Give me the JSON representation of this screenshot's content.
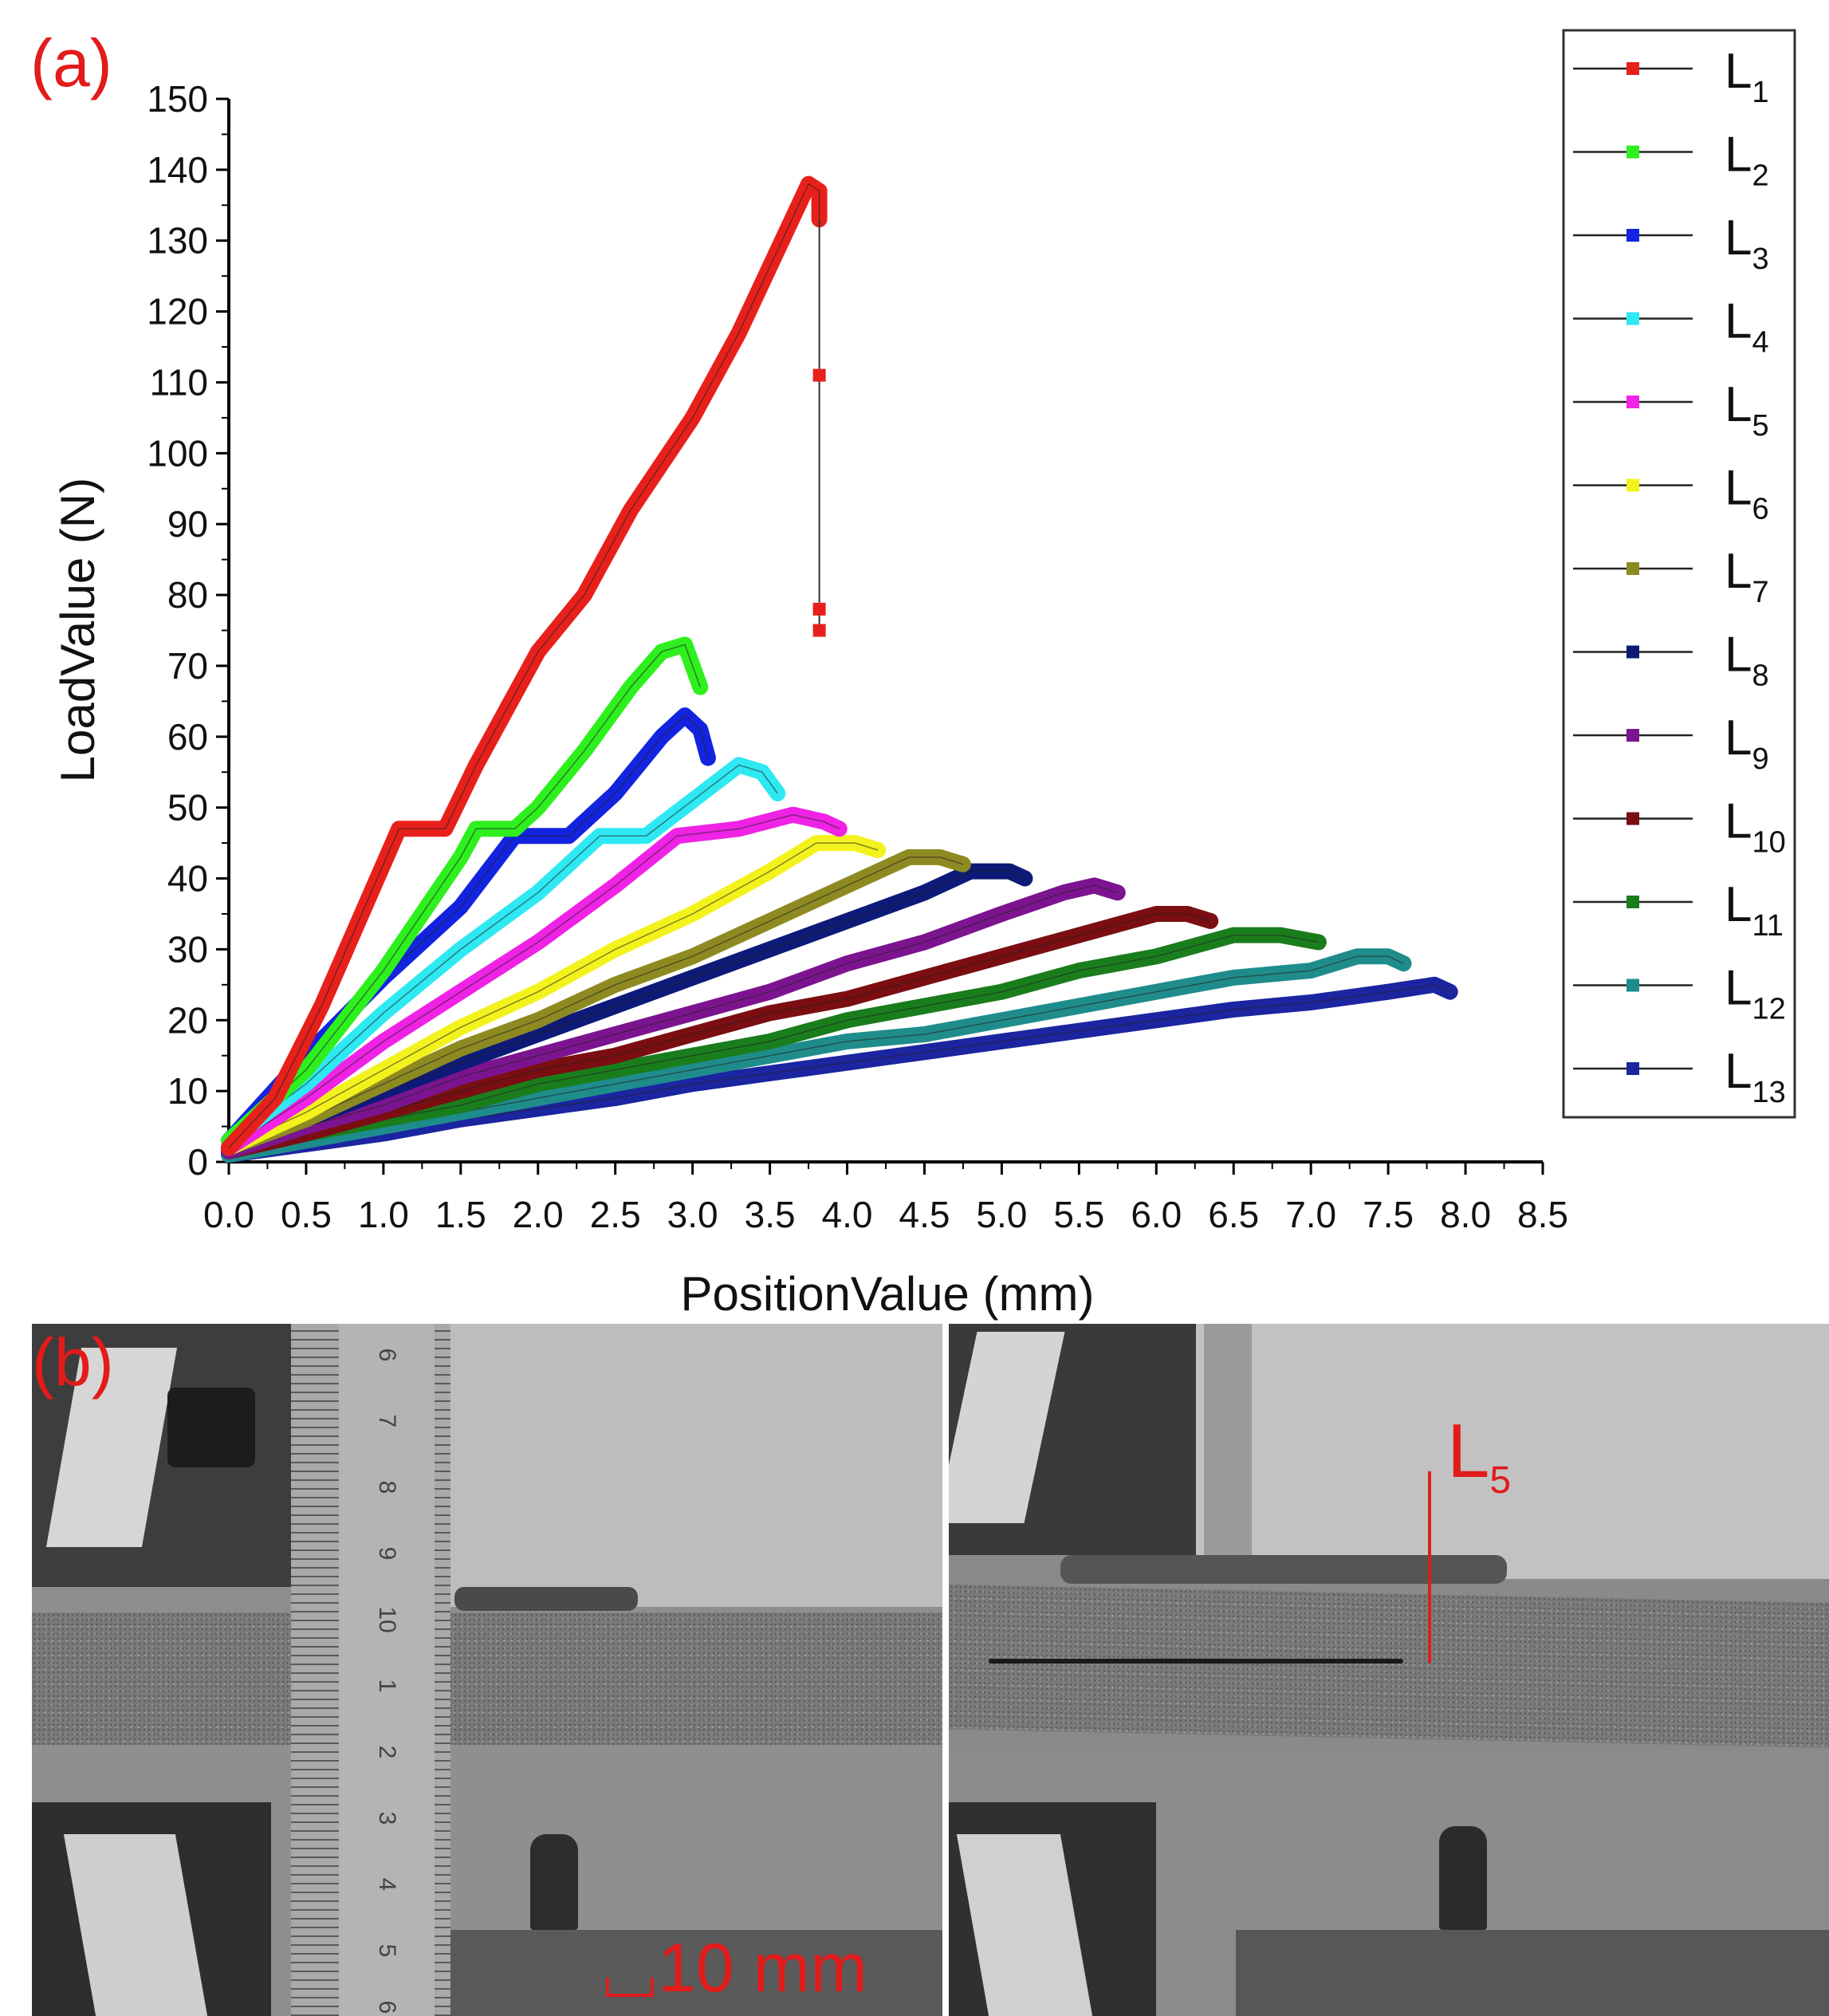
{
  "panel_a_label": "(a)",
  "panel_b_label": "(b)",
  "photo": {
    "scale_bar_label": "10 mm",
    "annotation_line": "L",
    "annotation_sub": "5",
    "ruler_numbers": [
      "6",
      "7",
      "8",
      "9",
      "10",
      "1",
      "2",
      "3",
      "4",
      "5",
      "6"
    ]
  },
  "chart_data": {
    "type": "line",
    "xlabel": "PositionValue (mm)",
    "ylabel": "LoadValue (N)",
    "xlim": [
      0,
      8.5
    ],
    "ylim": [
      0,
      150
    ],
    "xticks": [
      "0.0",
      "0.5",
      "1.0",
      "1.5",
      "2.0",
      "2.5",
      "3.0",
      "3.5",
      "4.0",
      "4.5",
      "5.0",
      "5.5",
      "6.0",
      "6.5",
      "7.0",
      "7.5",
      "8.0",
      "8.5"
    ],
    "yticks": [
      "0",
      "10",
      "20",
      "30",
      "40",
      "50",
      "60",
      "70",
      "80",
      "90",
      "100",
      "110",
      "120",
      "130",
      "140",
      "150"
    ],
    "grid": false,
    "legend_position": "right",
    "series": [
      {
        "name": "L",
        "sub": "1",
        "color": "#e8201b",
        "points": [
          [
            0,
            2
          ],
          [
            0.3,
            9
          ],
          [
            0.6,
            22
          ],
          [
            0.8,
            32
          ],
          [
            1.0,
            42
          ],
          [
            1.1,
            47
          ],
          [
            1.4,
            47
          ],
          [
            1.6,
            56
          ],
          [
            2.0,
            72
          ],
          [
            2.3,
            80
          ],
          [
            2.6,
            92
          ],
          [
            3.0,
            105
          ],
          [
            3.3,
            117
          ],
          [
            3.6,
            131
          ],
          [
            3.75,
            138
          ],
          [
            3.82,
            137
          ],
          [
            3.82,
            133
          ]
        ],
        "drop_points": [
          [
            3.82,
            111
          ],
          [
            3.82,
            78
          ],
          [
            3.82,
            75
          ]
        ]
      },
      {
        "name": "L",
        "sub": "2",
        "color": "#2ef01e",
        "points": [
          [
            0,
            3
          ],
          [
            0.5,
            13
          ],
          [
            1.0,
            27
          ],
          [
            1.5,
            43
          ],
          [
            1.6,
            47
          ],
          [
            1.85,
            47
          ],
          [
            2.0,
            50
          ],
          [
            2.3,
            58
          ],
          [
            2.6,
            67
          ],
          [
            2.8,
            72
          ],
          [
            2.95,
            73
          ],
          [
            3.0,
            70
          ],
          [
            3.05,
            67
          ]
        ]
      },
      {
        "name": "L",
        "sub": "3",
        "color": "#1324e0",
        "points": [
          [
            0,
            3
          ],
          [
            0.5,
            15
          ],
          [
            1.0,
            26
          ],
          [
            1.5,
            36
          ],
          [
            1.85,
            46
          ],
          [
            2.2,
            46
          ],
          [
            2.5,
            52
          ],
          [
            2.8,
            60
          ],
          [
            2.95,
            63
          ],
          [
            3.05,
            61
          ],
          [
            3.1,
            57
          ]
        ]
      },
      {
        "name": "L",
        "sub": "4",
        "color": "#2ee8f2",
        "points": [
          [
            0,
            3
          ],
          [
            0.5,
            11
          ],
          [
            1.0,
            21
          ],
          [
            1.5,
            30
          ],
          [
            2.0,
            38
          ],
          [
            2.4,
            46
          ],
          [
            2.7,
            46
          ],
          [
            3.0,
            51
          ],
          [
            3.3,
            56
          ],
          [
            3.45,
            55
          ],
          [
            3.55,
            52
          ]
        ]
      },
      {
        "name": "L",
        "sub": "5",
        "color": "#ef22e6",
        "points": [
          [
            0,
            2
          ],
          [
            0.5,
            9
          ],
          [
            1.0,
            17
          ],
          [
            1.5,
            24
          ],
          [
            2.0,
            31
          ],
          [
            2.5,
            39
          ],
          [
            2.9,
            46
          ],
          [
            3.3,
            47
          ],
          [
            3.65,
            49
          ],
          [
            3.85,
            48
          ],
          [
            3.95,
            47
          ]
        ]
      },
      {
        "name": "L",
        "sub": "6",
        "color": "#f4f21c",
        "points": [
          [
            0,
            2
          ],
          [
            0.5,
            7
          ],
          [
            1.0,
            13
          ],
          [
            1.5,
            19
          ],
          [
            2.0,
            24
          ],
          [
            2.5,
            30
          ],
          [
            3.0,
            35
          ],
          [
            3.5,
            41
          ],
          [
            3.8,
            45
          ],
          [
            4.05,
            45
          ],
          [
            4.2,
            44
          ]
        ]
      },
      {
        "name": "L",
        "sub": "7",
        "color": "#8e8a22",
        "points": [
          [
            0,
            2
          ],
          [
            0.5,
            6
          ],
          [
            1.0,
            11
          ],
          [
            1.5,
            16
          ],
          [
            2.0,
            20
          ],
          [
            2.5,
            25
          ],
          [
            3.0,
            29
          ],
          [
            3.5,
            34
          ],
          [
            4.0,
            39
          ],
          [
            4.4,
            43
          ],
          [
            4.6,
            43
          ],
          [
            4.75,
            42
          ]
        ]
      },
      {
        "name": "L",
        "sub": "8",
        "color": "#0d1a78",
        "points": [
          [
            0,
            2
          ],
          [
            0.5,
            6
          ],
          [
            1.0,
            10
          ],
          [
            1.5,
            14
          ],
          [
            2.0,
            18
          ],
          [
            2.5,
            22
          ],
          [
            3.0,
            26
          ],
          [
            3.5,
            30
          ],
          [
            4.0,
            34
          ],
          [
            4.5,
            38
          ],
          [
            4.8,
            41
          ],
          [
            5.05,
            41
          ],
          [
            5.15,
            40
          ]
        ]
      },
      {
        "name": "L",
        "sub": "9",
        "color": "#7c1490",
        "points": [
          [
            0,
            1.5
          ],
          [
            0.5,
            5
          ],
          [
            1.0,
            8
          ],
          [
            1.5,
            12
          ],
          [
            2.0,
            15
          ],
          [
            2.5,
            18
          ],
          [
            3.0,
            21
          ],
          [
            3.5,
            24
          ],
          [
            4.0,
            28
          ],
          [
            4.5,
            31
          ],
          [
            5.0,
            35
          ],
          [
            5.4,
            38
          ],
          [
            5.6,
            39
          ],
          [
            5.75,
            38
          ]
        ]
      },
      {
        "name": "L",
        "sub": "10",
        "color": "#7a0e12",
        "points": [
          [
            0,
            1.5
          ],
          [
            0.5,
            4
          ],
          [
            1.0,
            7
          ],
          [
            1.5,
            10
          ],
          [
            2.0,
            13
          ],
          [
            2.5,
            15
          ],
          [
            3.0,
            18
          ],
          [
            3.5,
            21
          ],
          [
            4.0,
            23
          ],
          [
            4.5,
            26
          ],
          [
            5.0,
            29
          ],
          [
            5.5,
            32
          ],
          [
            6.0,
            35
          ],
          [
            6.2,
            35
          ],
          [
            6.35,
            34
          ]
        ]
      },
      {
        "name": "L",
        "sub": "11",
        "color": "#1a7d1c",
        "points": [
          [
            0,
            1.5
          ],
          [
            0.5,
            4
          ],
          [
            1.0,
            6
          ],
          [
            1.5,
            8
          ],
          [
            2.0,
            11
          ],
          [
            2.5,
            13
          ],
          [
            3.0,
            15
          ],
          [
            3.5,
            17
          ],
          [
            4.0,
            20
          ],
          [
            4.5,
            22
          ],
          [
            5.0,
            24
          ],
          [
            5.5,
            27
          ],
          [
            6.0,
            29
          ],
          [
            6.5,
            32
          ],
          [
            6.8,
            32
          ],
          [
            7.05,
            31
          ]
        ]
      },
      {
        "name": "L",
        "sub": "12",
        "color": "#1f8c8c",
        "points": [
          [
            0,
            1
          ],
          [
            0.5,
            3
          ],
          [
            1.0,
            5
          ],
          [
            1.5,
            7
          ],
          [
            2.0,
            9
          ],
          [
            2.5,
            11
          ],
          [
            3.0,
            13
          ],
          [
            3.5,
            15
          ],
          [
            4.0,
            17
          ],
          [
            4.5,
            18
          ],
          [
            5.0,
            20
          ],
          [
            5.5,
            22
          ],
          [
            6.0,
            24
          ],
          [
            6.5,
            26
          ],
          [
            7.0,
            27
          ],
          [
            7.3,
            29
          ],
          [
            7.5,
            29
          ],
          [
            7.6,
            28
          ]
        ]
      },
      {
        "name": "L",
        "sub": "13",
        "color": "#1b25a0",
        "points": [
          [
            0,
            1
          ],
          [
            0.5,
            2.5
          ],
          [
            1.0,
            4
          ],
          [
            1.5,
            6
          ],
          [
            2.0,
            7.5
          ],
          [
            2.5,
            9
          ],
          [
            3.0,
            11
          ],
          [
            3.5,
            12.5
          ],
          [
            4.0,
            14
          ],
          [
            4.5,
            15.5
          ],
          [
            5.0,
            17
          ],
          [
            5.5,
            18.5
          ],
          [
            6.0,
            20
          ],
          [
            6.5,
            21.5
          ],
          [
            7.0,
            22.5
          ],
          [
            7.5,
            24
          ],
          [
            7.8,
            25
          ],
          [
            7.9,
            24
          ]
        ]
      }
    ]
  }
}
